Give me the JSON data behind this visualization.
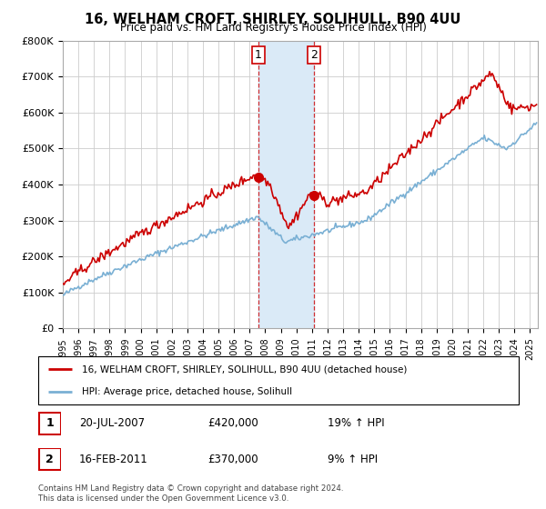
{
  "title": "16, WELHAM CROFT, SHIRLEY, SOLIHULL, B90 4UU",
  "subtitle": "Price paid vs. HM Land Registry's House Price Index (HPI)",
  "ylabel_ticks": [
    "£0",
    "£100K",
    "£200K",
    "£300K",
    "£400K",
    "£500K",
    "£600K",
    "£700K",
    "£800K"
  ],
  "ylim": [
    0,
    800000
  ],
  "xlim_start": 1995.0,
  "xlim_end": 2025.5,
  "shade_start": 2007.54,
  "shade_end": 2011.12,
  "sale1_x": 2007.54,
  "sale1_y": 420000,
  "sale1_label": "1",
  "sale2_x": 2011.12,
  "sale2_y": 370000,
  "sale2_label": "2",
  "line_color_price": "#cc0000",
  "line_color_hpi": "#7ab0d4",
  "shade_color": "#daeaf7",
  "legend_label_price": "16, WELHAM CROFT, SHIRLEY, SOLIHULL, B90 4UU (detached house)",
  "legend_label_hpi": "HPI: Average price, detached house, Solihull",
  "table_row1": [
    "1",
    "20-JUL-2007",
    "£420,000",
    "19% ↑ HPI"
  ],
  "table_row2": [
    "2",
    "16-FEB-2011",
    "£370,000",
    "9% ↑ HPI"
  ],
  "footnote": "Contains HM Land Registry data © Crown copyright and database right 2024.\nThis data is licensed under the Open Government Licence v3.0.",
  "background_color": "#ffffff",
  "grid_color": "#cccccc"
}
